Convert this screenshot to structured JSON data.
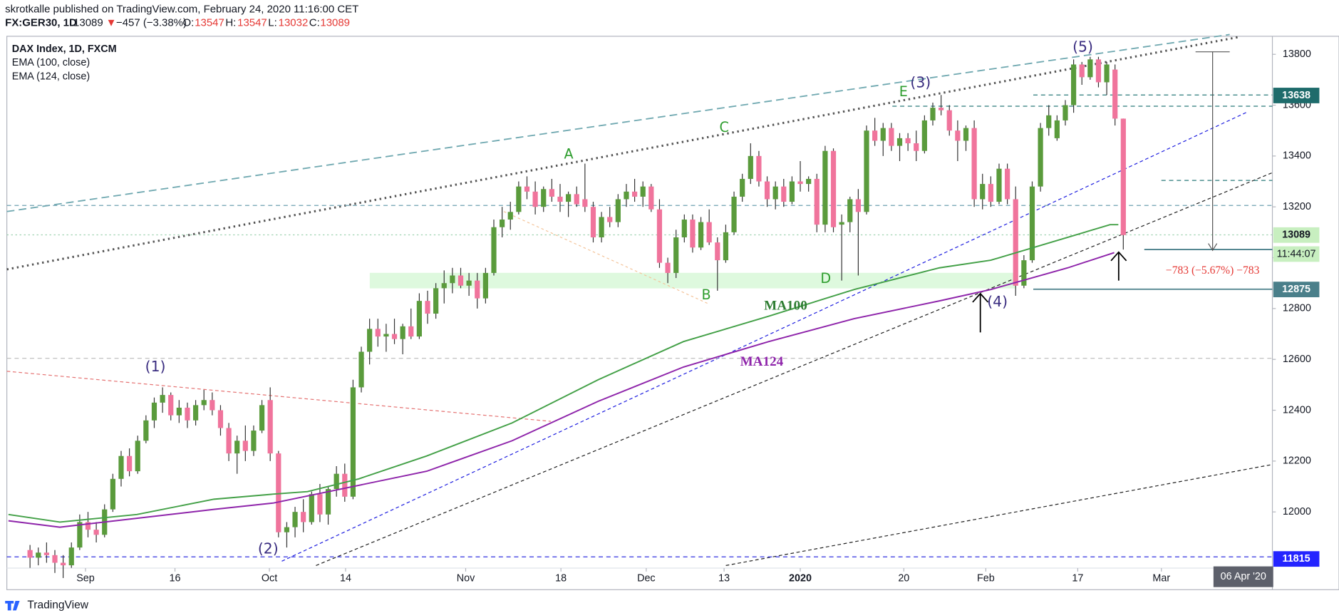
{
  "header": {
    "publisher": "skrotkalle published on TradingView.com, February 24, 2020 11:16:00 CET",
    "symbol": "FX:GER30, 1D",
    "change_arrow": "▼",
    "change": "−457 (−3.38%)",
    "o_label": "O:",
    "h_label": "H:",
    "l_label": "L:",
    "c_label": "C:"
  },
  "annotations": {
    "waves": [
      "(1)",
      "(2)",
      "(3)",
      "(4)",
      "(5)"
    ],
    "letters": [
      "A",
      "B",
      "C",
      "D",
      "E"
    ],
    "ma100": "MA100",
    "ma124": "MA124",
    "range": "−783 (−5.67%) −783"
  },
  "footer": "TradingView",
  "chart_data": {
    "type": "candlestick",
    "title": "DAX Index, 1D, FXCM",
    "up_color": "#5a9b3c",
    "down_color": "#f0749c",
    "wick_color": "#333333",
    "xlim": [
      -2.8,
      150
    ],
    "ylim": [
      11779,
      13871
    ],
    "xticks": [
      {
        "value": 6.7,
        "label": "Sep"
      },
      {
        "value": 17.5,
        "label": "16"
      },
      {
        "value": 28.9,
        "label": "Oct"
      },
      {
        "value": 38.1,
        "label": "14"
      },
      {
        "value": 52.6,
        "label": "Nov"
      },
      {
        "value": 64.1,
        "label": "18"
      },
      {
        "value": 74.4,
        "label": "Dec"
      },
      {
        "value": 83.8,
        "label": "13"
      },
      {
        "value": 93,
        "label": "2020"
      },
      {
        "value": 105.5,
        "label": "20"
      },
      {
        "value": 115.4,
        "label": "Feb"
      },
      {
        "value": 126.5,
        "label": "17"
      },
      {
        "value": 136.6,
        "label": "Mar"
      }
    ],
    "yticks": [
      12000,
      12200,
      12400,
      12600,
      12800,
      13000,
      13200,
      13400,
      13600,
      13800
    ],
    "grid": false,
    "badges": [
      {
        "value": 13638,
        "color": "#1e6b6b"
      },
      {
        "value": 12875,
        "color": "#4a7f8a"
      },
      {
        "value": 11815,
        "color": "#2424ff"
      }
    ],
    "last_badge_color": "#c8efc0",
    "countdown": "11:44:07",
    "date_badge": "06 Apr '20",
    "ohlc": [
      [
        11850,
        11870,
        11780,
        11820
      ],
      [
        11820,
        11860,
        11790,
        11840
      ],
      [
        11840,
        11880,
        11800,
        11830
      ],
      [
        11830,
        11850,
        11760,
        11800
      ],
      [
        11800,
        11830,
        11740,
        11790
      ],
      [
        11790,
        11880,
        11780,
        11860
      ],
      [
        11860,
        11990,
        11850,
        11960
      ],
      [
        11960,
        12000,
        11900,
        11930
      ],
      [
        11930,
        11960,
        11880,
        11910
      ],
      [
        11910,
        12030,
        11900,
        12010
      ],
      [
        12010,
        12150,
        12000,
        12130
      ],
      [
        12130,
        12240,
        12100,
        12220
      ],
      [
        12220,
        12250,
        12140,
        12160
      ],
      [
        12160,
        12300,
        12150,
        12280
      ],
      [
        12280,
        12380,
        12270,
        12360
      ],
      [
        12360,
        12450,
        12330,
        12430
      ],
      [
        12430,
        12490,
        12390,
        12460
      ],
      [
        12460,
        12470,
        12360,
        12380
      ],
      [
        12380,
        12440,
        12350,
        12410
      ],
      [
        12410,
        12430,
        12330,
        12360
      ],
      [
        12360,
        12440,
        12340,
        12420
      ],
      [
        12420,
        12480,
        12400,
        12440
      ],
      [
        12440,
        12470,
        12380,
        12400
      ],
      [
        12400,
        12420,
        12300,
        12330
      ],
      [
        12330,
        12350,
        12200,
        12230
      ],
      [
        12230,
        12300,
        12150,
        12280
      ],
      [
        12280,
        12340,
        12200,
        12240
      ],
      [
        12240,
        12340,
        12220,
        12320
      ],
      [
        12320,
        12440,
        12310,
        12420
      ],
      [
        12440,
        12490,
        12200,
        12230
      ],
      [
        12230,
        12240,
        11900,
        11920
      ],
      [
        11920,
        11960,
        11860,
        11940
      ],
      [
        11940,
        12020,
        11900,
        12000
      ],
      [
        12000,
        12050,
        11920,
        11960
      ],
      [
        11960,
        12080,
        11950,
        12070
      ],
      [
        12070,
        12110,
        11960,
        11990
      ],
      [
        11990,
        12100,
        11950,
        12090
      ],
      [
        12090,
        12180,
        12060,
        12150
      ],
      [
        12150,
        12190,
        12040,
        12060
      ],
      [
        12060,
        12520,
        12050,
        12490
      ],
      [
        12490,
        12650,
        12470,
        12630
      ],
      [
        12630,
        12760,
        12580,
        12720
      ],
      [
        12720,
        12760,
        12650,
        12690
      ],
      [
        12690,
        12740,
        12630,
        12700
      ],
      [
        12700,
        12760,
        12660,
        12680
      ],
      [
        12680,
        12740,
        12620,
        12730
      ],
      [
        12730,
        12800,
        12680,
        12690
      ],
      [
        12690,
        12860,
        12680,
        12830
      ],
      [
        12830,
        12870,
        12740,
        12780
      ],
      [
        12780,
        12900,
        12760,
        12880
      ],
      [
        12880,
        12950,
        12820,
        12900
      ],
      [
        12900,
        12960,
        12860,
        12930
      ],
      [
        12930,
        12960,
        12880,
        12890
      ],
      [
        12890,
        12940,
        12850,
        12910
      ],
      [
        12910,
        12940,
        12800,
        12840
      ],
      [
        12840,
        12960,
        12820,
        12940
      ],
      [
        12940,
        13150,
        12930,
        13120
      ],
      [
        13120,
        13200,
        13080,
        13150
      ],
      [
        13150,
        13220,
        13110,
        13180
      ],
      [
        13180,
        13300,
        13170,
        13280
      ],
      [
        13280,
        13320,
        13230,
        13260
      ],
      [
        13260,
        13300,
        13170,
        13200
      ],
      [
        13200,
        13280,
        13180,
        13270
      ],
      [
        13270,
        13310,
        13220,
        13240
      ],
      [
        13240,
        13290,
        13180,
        13220
      ],
      [
        13220,
        13260,
        13160,
        13250
      ],
      [
        13250,
        13280,
        13200,
        13210
      ],
      [
        13230,
        13370,
        13180,
        13200
      ],
      [
        13200,
        13220,
        13060,
        13080
      ],
      [
        13080,
        13180,
        13060,
        13160
      ],
      [
        13160,
        13200,
        13120,
        13140
      ],
      [
        13140,
        13250,
        13120,
        13230
      ],
      [
        13230,
        13290,
        13200,
        13260
      ],
      [
        13260,
        13310,
        13220,
        13240
      ],
      [
        13240,
        13300,
        13200,
        13280
      ],
      [
        13280,
        13290,
        13180,
        13190
      ],
      [
        13190,
        13230,
        12960,
        12980
      ],
      [
        12980,
        13000,
        12900,
        12940
      ],
      [
        12940,
        13110,
        12920,
        13080
      ],
      [
        13080,
        13170,
        13060,
        13150
      ],
      [
        13150,
        13170,
        13020,
        13040
      ],
      [
        13040,
        13160,
        13030,
        13140
      ],
      [
        13140,
        13190,
        13050,
        13060
      ],
      [
        13060,
        13080,
        12870,
        12990
      ],
      [
        12990,
        13130,
        12980,
        13100
      ],
      [
        13100,
        13260,
        13090,
        13240
      ],
      [
        13240,
        13330,
        13220,
        13310
      ],
      [
        13310,
        13450,
        13290,
        13400
      ],
      [
        13400,
        13420,
        13280,
        13300
      ],
      [
        13300,
        13320,
        13200,
        13230
      ],
      [
        13230,
        13300,
        13190,
        13280
      ],
      [
        13280,
        13310,
        13200,
        13220
      ],
      [
        13220,
        13320,
        13210,
        13300
      ],
      [
        13300,
        13380,
        13260,
        13290
      ],
      [
        13290,
        13320,
        13260,
        13310
      ],
      [
        13310,
        13330,
        13100,
        13130
      ],
      [
        13130,
        13440,
        13100,
        13420
      ],
      [
        13420,
        13430,
        13100,
        13120
      ],
      [
        13130,
        13170,
        12910,
        13140
      ],
      [
        13140,
        13240,
        13100,
        13230
      ],
      [
        13230,
        13270,
        12930,
        13180
      ],
      [
        13180,
        13520,
        13170,
        13500
      ],
      [
        13500,
        13550,
        13440,
        13460
      ],
      [
        13460,
        13530,
        13400,
        13510
      ],
      [
        13510,
        13530,
        13420,
        13440
      ],
      [
        13440,
        13490,
        13380,
        13470
      ],
      [
        13470,
        13490,
        13420,
        13450
      ],
      [
        13450,
        13500,
        13380,
        13420
      ],
      [
        13420,
        13560,
        13410,
        13540
      ],
      [
        13540,
        13610,
        13520,
        13590
      ],
      [
        13590,
        13640,
        13560,
        13580
      ],
      [
        13580,
        13600,
        13480,
        13500
      ],
      [
        13500,
        13540,
        13380,
        13460
      ],
      [
        13460,
        13520,
        13420,
        13510
      ],
      [
        13510,
        13540,
        13200,
        13230
      ],
      [
        13230,
        13330,
        13190,
        13290
      ],
      [
        13290,
        13320,
        13200,
        13220
      ],
      [
        13220,
        13370,
        13210,
        13350
      ],
      [
        13350,
        13370,
        13210,
        13230
      ],
      [
        13230,
        13280,
        12850,
        12890
      ],
      [
        12890,
        13010,
        12880,
        12990
      ],
      [
        12990,
        13300,
        12980,
        13280
      ],
      [
        13280,
        13530,
        13260,
        13510
      ],
      [
        13510,
        13600,
        13480,
        13560
      ],
      [
        13470,
        13560,
        13460,
        13540
      ],
      [
        13540,
        13620,
        13520,
        13600
      ],
      [
        13600,
        13780,
        13570,
        13760
      ],
      [
        13760,
        13770,
        13680,
        13710
      ],
      [
        13710,
        13790,
        13700,
        13780
      ],
      [
        13780,
        13790,
        13670,
        13690
      ],
      [
        13690,
        13770,
        13640,
        13760
      ],
      [
        13740,
        13760,
        13520,
        13547
      ],
      [
        13547,
        13547,
        13032,
        13089
      ]
    ],
    "series": [
      {
        "name": "EMA (100, close)",
        "color": "#43a047",
        "x": [
          -2.6,
          3.6,
          12.9,
          22.2,
          29.4,
          33.5,
          39.7,
          47.9,
          58.2,
          68.6,
          78.9,
          89.2,
          99.5,
          109.8,
          116,
          125.3,
          130.4,
          131.4
        ],
        "values": [
          11990,
          11960,
          11990,
          12050,
          12070,
          12080,
          12130,
          12220,
          12350,
          12520,
          12670,
          12770,
          12875,
          12960,
          12990,
          13080,
          13130,
          13130
        ]
      },
      {
        "name": "EMA (124, close)",
        "color": "#8e24aa",
        "x": [
          -2.6,
          3.6,
          22.2,
          29.4,
          47.9,
          58.2,
          68.6,
          78.9,
          89.2,
          99.5,
          109.8,
          116,
          125.3,
          130.9
        ],
        "values": [
          11965,
          11940,
          12010,
          12035,
          12160,
          12280,
          12435,
          12570,
          12670,
          12760,
          12830,
          12875,
          12960,
          13020
        ]
      }
    ]
  }
}
